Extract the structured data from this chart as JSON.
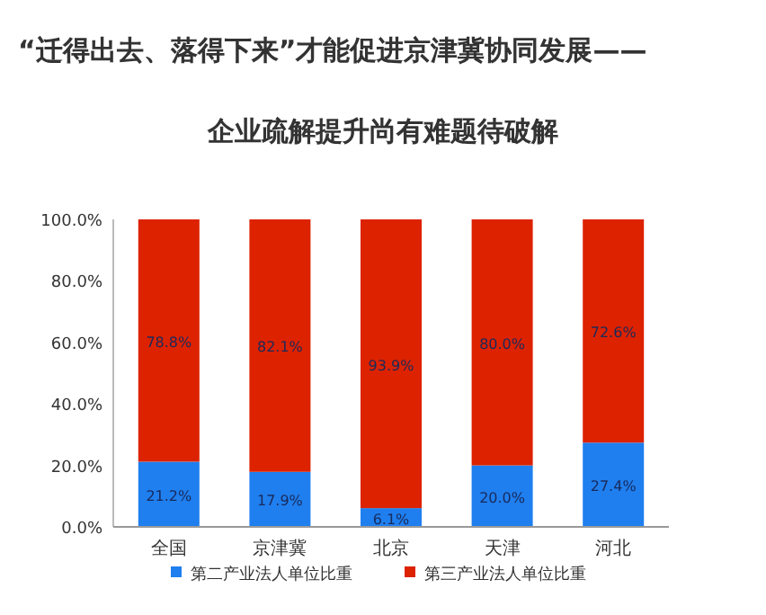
{
  "chart_data": {
    "type": "bar",
    "title": "“迁得出去、落得下来”才能促进京津冀协同发展——",
    "subtitle": "企业疏解提升尚有难题待破解",
    "categories": [
      "全国",
      "京津冀",
      "北京",
      "天津",
      "河北"
    ],
    "stacked": true,
    "series": [
      {
        "name": "第二产业法人单位比重",
        "color": "#1f7fef",
        "values": [
          21.2,
          17.9,
          6.1,
          20.0,
          27.4
        ],
        "value_labels": [
          "21.2%",
          "17.9%",
          "6.1%",
          "20.0%",
          "27.4%"
        ]
      },
      {
        "name": "第三产业法人单位比重",
        "color": "#dd2200",
        "values": [
          78.8,
          82.1,
          93.9,
          80.0,
          72.6
        ],
        "value_labels": [
          "78.8%",
          "82.1%",
          "93.9%",
          "80.0%",
          "72.6%"
        ]
      }
    ],
    "ylim": [
      0,
      100
    ],
    "yticks": [
      {
        "value": 0,
        "label": "0.0%"
      },
      {
        "value": 20,
        "label": "20.0%"
      },
      {
        "value": 40,
        "label": "40.0%"
      },
      {
        "value": 60,
        "label": "60.0%"
      },
      {
        "value": 80,
        "label": "80.0%"
      },
      {
        "value": 100,
        "label": "100.0%"
      }
    ],
    "legend": "bottom"
  }
}
